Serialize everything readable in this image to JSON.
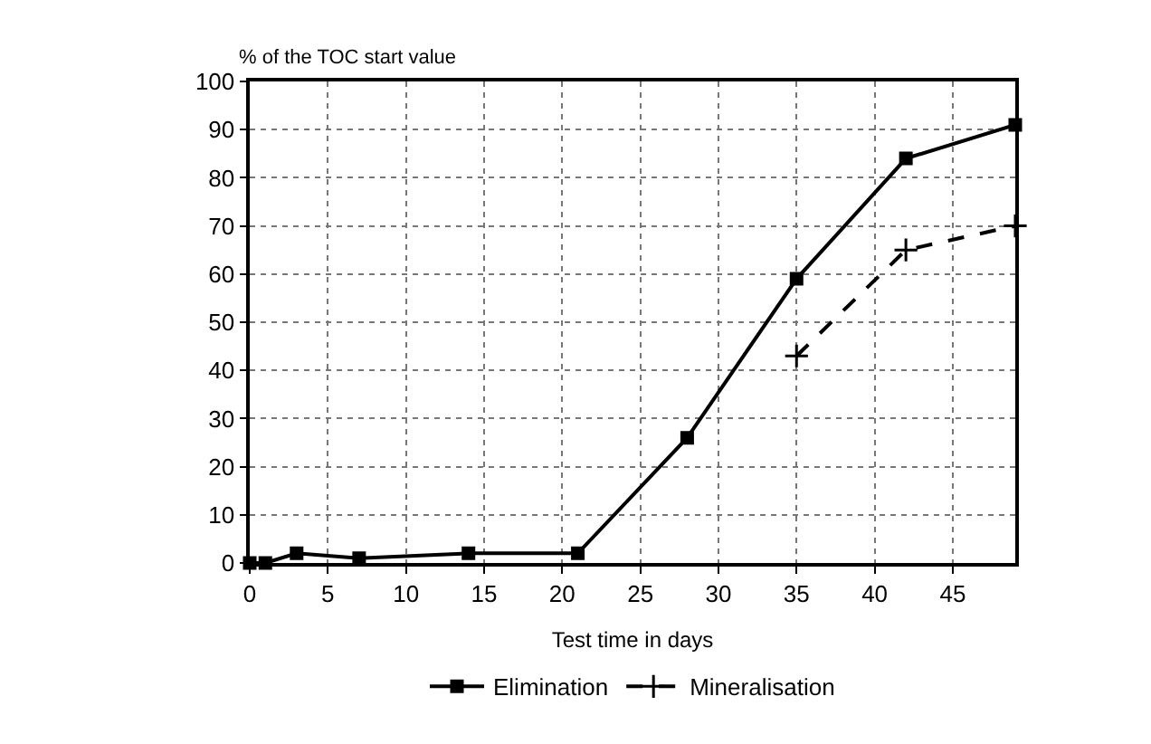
{
  "chart_data": {
    "type": "line",
    "ylabel": "% of the TOC start value",
    "xlabel": "Test time in days",
    "xlim": [
      0,
      49
    ],
    "xticks": [
      0,
      5,
      10,
      15,
      20,
      25,
      30,
      35,
      40,
      45
    ],
    "ylim": [
      0,
      100
    ],
    "yticks": [
      0,
      10,
      20,
      30,
      40,
      50,
      60,
      70,
      80,
      90,
      100
    ],
    "grid": true,
    "legend": "bottom",
    "series": [
      {
        "name": "Elimination",
        "color": "#000000",
        "marker": "square",
        "line_style": "solid",
        "x": [
          0,
          1,
          3,
          7,
          14,
          21,
          28,
          35,
          42,
          49
        ],
        "values": [
          0,
          0,
          2,
          1,
          2,
          2,
          26,
          59,
          84,
          91
        ]
      },
      {
        "name": "Mineralisation",
        "color": "#000000",
        "marker": "cross",
        "line_style": "dashed",
        "x": [
          35,
          42,
          49
        ],
        "values": [
          43,
          65,
          70
        ]
      }
    ]
  }
}
